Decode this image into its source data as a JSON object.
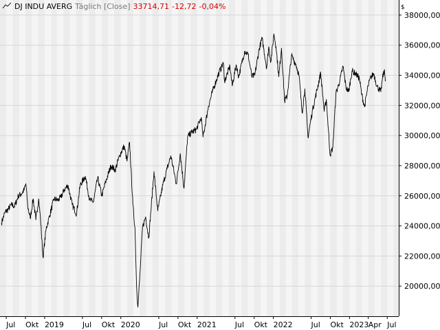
{
  "legend": {
    "icon": "line-chart-icon",
    "instrument": "DJ INDU AVERG",
    "mode": "Täglich [Close]",
    "last": "33714,71",
    "change": "-12,72",
    "change_pct": "-0,04%",
    "change_color": "#d00000"
  },
  "chart_data": {
    "type": "line",
    "title": "",
    "xlabel": "",
    "ylabel": "",
    "y_unit": "$",
    "ylim": [
      18000,
      39000
    ],
    "y_ticks": [
      20000,
      22000,
      24000,
      26000,
      28000,
      30000,
      32000,
      34000,
      36000,
      38000
    ],
    "y_tick_labels": [
      "20000,00",
      "22000,00",
      "24000,00",
      "26000,00",
      "28000,00",
      "30000,00",
      "32000,00",
      "34000,00",
      "36000,00",
      "38000,00"
    ],
    "x_ticks": [
      {
        "label": "Jul",
        "date": "2018-07"
      },
      {
        "label": "Okt",
        "date": "2018-10"
      },
      {
        "label": "2019",
        "date": "2019-01"
      },
      {
        "label": "Jul",
        "date": "2019-07"
      },
      {
        "label": "Okt",
        "date": "2019-10"
      },
      {
        "label": "2020",
        "date": "2020-01"
      },
      {
        "label": "Jul",
        "date": "2020-07"
      },
      {
        "label": "Okt",
        "date": "2020-10"
      },
      {
        "label": "2021",
        "date": "2021-01"
      },
      {
        "label": "Jul",
        "date": "2021-07"
      },
      {
        "label": "Okt",
        "date": "2021-10"
      },
      {
        "label": "2022",
        "date": "2022-01"
      },
      {
        "label": "Jul",
        "date": "2022-07"
      },
      {
        "label": "Okt",
        "date": "2022-10"
      },
      {
        "label": "2023",
        "date": "2023-01"
      },
      {
        "label": "Apr",
        "date": "2023-04"
      },
      {
        "label": "Jul",
        "date": "2023-07"
      }
    ],
    "grid": true,
    "series": [
      {
        "name": "",
        "color": "#000000",
        "points": [
          [
            "2018-06-08",
            24200
          ],
          [
            "2018-06-25",
            24900
          ],
          [
            "2018-07-10",
            25100
          ],
          [
            "2018-07-25",
            25400
          ],
          [
            "2018-08-10",
            25300
          ],
          [
            "2018-08-28",
            26000
          ],
          [
            "2018-09-10",
            26100
          ],
          [
            "2018-09-25",
            26400
          ],
          [
            "2018-10-03",
            26800
          ],
          [
            "2018-10-12",
            25300
          ],
          [
            "2018-10-24",
            24500
          ],
          [
            "2018-11-07",
            25800
          ],
          [
            "2018-11-20",
            24400
          ],
          [
            "2018-12-03",
            25800
          ],
          [
            "2018-12-12",
            24500
          ],
          [
            "2018-12-24",
            21900
          ],
          [
            "2019-01-08",
            23800
          ],
          [
            "2019-01-25",
            24700
          ],
          [
            "2019-02-15",
            25800
          ],
          [
            "2019-03-05",
            25700
          ],
          [
            "2019-03-20",
            25900
          ],
          [
            "2019-04-05",
            26400
          ],
          [
            "2019-04-23",
            26700
          ],
          [
            "2019-05-13",
            25400
          ],
          [
            "2019-06-03",
            24800
          ],
          [
            "2019-06-20",
            26700
          ],
          [
            "2019-07-15",
            27300
          ],
          [
            "2019-08-05",
            25700
          ],
          [
            "2019-08-23",
            25600
          ],
          [
            "2019-09-12",
            27200
          ],
          [
            "2019-10-02",
            26000
          ],
          [
            "2019-10-20",
            26900
          ],
          [
            "2019-11-15",
            28000
          ],
          [
            "2019-12-05",
            27700
          ],
          [
            "2019-12-27",
            28700
          ],
          [
            "2020-01-17",
            29300
          ],
          [
            "2020-01-31",
            28300
          ],
          [
            "2020-02-12",
            29550
          ],
          [
            "2020-02-28",
            25400
          ],
          [
            "2020-03-09",
            23800
          ],
          [
            "2020-03-16",
            20200
          ],
          [
            "2020-03-23",
            18600
          ],
          [
            "2020-04-03",
            21100
          ],
          [
            "2020-04-14",
            23900
          ],
          [
            "2020-04-29",
            24600
          ],
          [
            "2020-05-14",
            23200
          ],
          [
            "2020-06-08",
            27600
          ],
          [
            "2020-06-26",
            25000
          ],
          [
            "2020-07-20",
            26700
          ],
          [
            "2020-08-10",
            27800
          ],
          [
            "2020-08-28",
            28650
          ],
          [
            "2020-09-23",
            26800
          ],
          [
            "2020-10-12",
            28800
          ],
          [
            "2020-10-30",
            26500
          ],
          [
            "2020-11-16",
            29900
          ],
          [
            "2020-12-04",
            30200
          ],
          [
            "2020-12-28",
            30400
          ],
          [
            "2021-01-20",
            31200
          ],
          [
            "2021-01-29",
            29900
          ],
          [
            "2021-02-24",
            31950
          ],
          [
            "2021-03-17",
            33000
          ],
          [
            "2021-04-16",
            34200
          ],
          [
            "2021-05-07",
            34800
          ],
          [
            "2021-05-12",
            33600
          ],
          [
            "2021-06-07",
            34600
          ],
          [
            "2021-06-18",
            33300
          ],
          [
            "2021-07-07",
            34700
          ],
          [
            "2021-07-19",
            33900
          ],
          [
            "2021-08-16",
            35600
          ],
          [
            "2021-09-02",
            35400
          ],
          [
            "2021-09-20",
            33900
          ],
          [
            "2021-10-04",
            34000
          ],
          [
            "2021-10-26",
            35800
          ],
          [
            "2021-11-08",
            36450
          ],
          [
            "2021-11-30",
            34500
          ],
          [
            "2021-12-10",
            35900
          ],
          [
            "2021-12-20",
            34900
          ],
          [
            "2022-01-04",
            36750
          ],
          [
            "2022-01-14",
            35900
          ],
          [
            "2022-01-27",
            33900
          ],
          [
            "2022-02-09",
            35800
          ],
          [
            "2022-02-24",
            32300
          ],
          [
            "2022-03-08",
            32600
          ],
          [
            "2022-03-29",
            35300
          ],
          [
            "2022-04-20",
            34700
          ],
          [
            "2022-05-04",
            34000
          ],
          [
            "2022-05-19",
            31500
          ],
          [
            "2022-06-01",
            33100
          ],
          [
            "2022-06-16",
            29900
          ],
          [
            "2022-07-08",
            31700
          ],
          [
            "2022-08-16",
            34150
          ],
          [
            "2022-09-02",
            31600
          ],
          [
            "2022-09-12",
            32400
          ],
          [
            "2022-09-30",
            28700
          ],
          [
            "2022-10-13",
            29200
          ],
          [
            "2022-10-28",
            32800
          ],
          [
            "2022-11-15",
            33600
          ],
          [
            "2022-12-01",
            34600
          ],
          [
            "2022-12-15",
            33200
          ],
          [
            "2022-12-28",
            32900
          ],
          [
            "2023-01-13",
            34300
          ],
          [
            "2023-01-31",
            34100
          ],
          [
            "2023-02-17",
            33800
          ],
          [
            "2023-03-01",
            32700
          ],
          [
            "2023-03-14",
            31900
          ],
          [
            "2023-03-31",
            33300
          ],
          [
            "2023-04-14",
            33900
          ],
          [
            "2023-04-28",
            34100
          ],
          [
            "2023-05-12",
            33300
          ],
          [
            "2023-05-31",
            32900
          ],
          [
            "2023-06-08",
            33800
          ],
          [
            "2023-06-16",
            34300
          ],
          [
            "2023-06-23",
            33700
          ]
        ]
      }
    ]
  }
}
